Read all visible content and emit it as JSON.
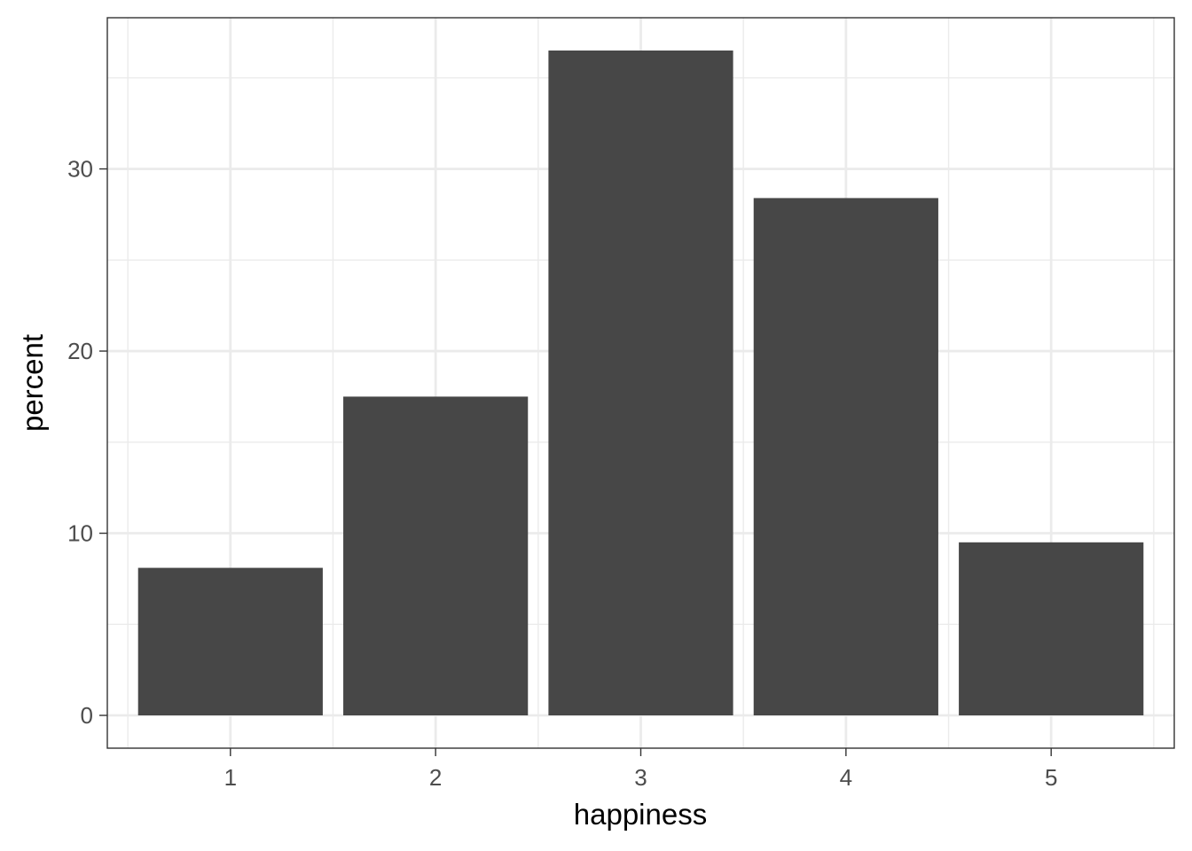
{
  "chart_data": {
    "type": "bar",
    "title": "",
    "xlabel": "happiness",
    "ylabel": "percent",
    "categories": [
      "1",
      "2",
      "3",
      "4",
      "5"
    ],
    "values": [
      8.1,
      17.5,
      36.5,
      28.4,
      9.5
    ],
    "ylim": [
      -1.8,
      38.3
    ],
    "yticks": [
      0,
      10,
      20,
      30
    ],
    "ytick_labels": [
      "0",
      "10",
      "20",
      "30"
    ],
    "grid": true,
    "legend": "none",
    "colors": {
      "bar": "#474747",
      "panel_background": "#ffffff",
      "grid": "#ebebeb",
      "panel_border": "#333333",
      "tick": "#333333"
    }
  }
}
